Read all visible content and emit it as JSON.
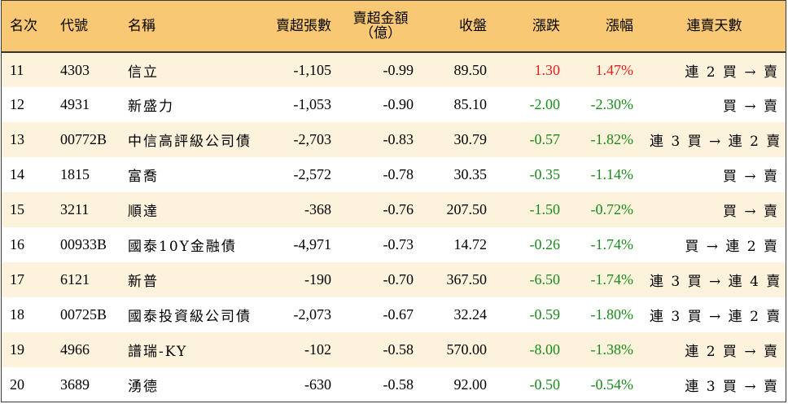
{
  "headers": {
    "rank": "名次",
    "code": "代號",
    "name": "名稱",
    "net_sell_lots": "賣超張數",
    "net_sell_amount_line1": "賣超金額",
    "net_sell_amount_line2": "（億）",
    "close": "收盤",
    "change": "漲跌",
    "change_pct": "漲幅",
    "consecutive_days": "連賣天數"
  },
  "colors": {
    "header_bg": "#f9c875",
    "odd_row_bg": "#fdf2dc",
    "up": "#e02020",
    "down": "#1a8a1a"
  },
  "rows": [
    {
      "rank": "11",
      "code": "4303",
      "name": "信立",
      "lots": "-1,105",
      "amount": "-0.99",
      "close": "89.50",
      "change": "1.30",
      "pct": "1.47%",
      "trend": "up",
      "days": "連 2 買 → 賣"
    },
    {
      "rank": "12",
      "code": "4931",
      "name": "新盛力",
      "lots": "-1,053",
      "amount": "-0.90",
      "close": "85.10",
      "change": "-2.00",
      "pct": "-2.30%",
      "trend": "down",
      "days": "買 → 賣"
    },
    {
      "rank": "13",
      "code": "00772B",
      "name": "中信高評級公司債",
      "lots": "-2,703",
      "amount": "-0.83",
      "close": "30.79",
      "change": "-0.57",
      "pct": "-1.82%",
      "trend": "down",
      "days": "連 3 買 → 連 2 賣"
    },
    {
      "rank": "14",
      "code": "1815",
      "name": "富喬",
      "lots": "-2,572",
      "amount": "-0.78",
      "close": "30.35",
      "change": "-0.35",
      "pct": "-1.14%",
      "trend": "down",
      "days": "買 → 賣"
    },
    {
      "rank": "15",
      "code": "3211",
      "name": "順達",
      "lots": "-368",
      "amount": "-0.76",
      "close": "207.50",
      "change": "-1.50",
      "pct": "-0.72%",
      "trend": "down",
      "days": "買 → 賣"
    },
    {
      "rank": "16",
      "code": "00933B",
      "name": "國泰10Y金融債",
      "lots": "-4,971",
      "amount": "-0.73",
      "close": "14.72",
      "change": "-0.26",
      "pct": "-1.74%",
      "trend": "down",
      "days": "買 → 連 2 賣"
    },
    {
      "rank": "17",
      "code": "6121",
      "name": "新普",
      "lots": "-190",
      "amount": "-0.70",
      "close": "367.50",
      "change": "-6.50",
      "pct": "-1.74%",
      "trend": "down",
      "days": "連 3 買 → 連 4 賣"
    },
    {
      "rank": "18",
      "code": "00725B",
      "name": "國泰投資級公司債",
      "lots": "-2,073",
      "amount": "-0.67",
      "close": "32.24",
      "change": "-0.59",
      "pct": "-1.80%",
      "trend": "down",
      "days": "連 3 買 → 連 2 賣"
    },
    {
      "rank": "19",
      "code": "4966",
      "name": "譜瑞-KY",
      "lots": "-102",
      "amount": "-0.58",
      "close": "570.00",
      "change": "-8.00",
      "pct": "-1.38%",
      "trend": "down",
      "days": "連 2 買 → 賣"
    },
    {
      "rank": "20",
      "code": "3689",
      "name": "湧德",
      "lots": "-630",
      "amount": "-0.58",
      "close": "92.00",
      "change": "-0.50",
      "pct": "-0.54%",
      "trend": "down",
      "days": "連 3 買 → 賣"
    }
  ]
}
